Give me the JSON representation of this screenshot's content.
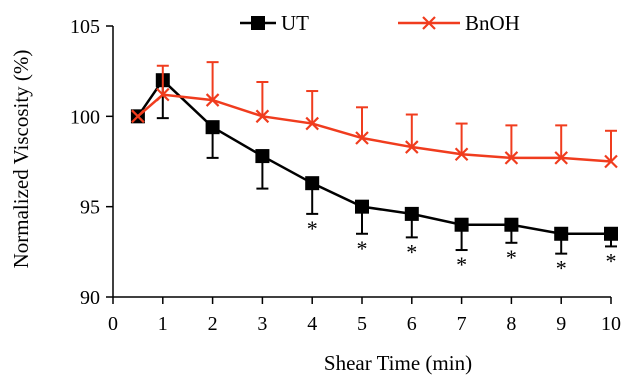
{
  "chart_data": {
    "type": "line",
    "xlabel": "Shear Time (min)",
    "ylabel": "Normalized Viscosity (%)",
    "xlim": [
      0,
      10
    ],
    "ylim": [
      90,
      105
    ],
    "xticks": [
      0,
      1,
      2,
      3,
      4,
      5,
      6,
      7,
      8,
      9,
      10
    ],
    "yticks": [
      90,
      95,
      100,
      105
    ],
    "grid": false,
    "legend_position": "top",
    "series": [
      {
        "name": "UT",
        "color": "#000000",
        "marker": "square",
        "x": [
          0.5,
          1,
          2,
          3,
          4,
          5,
          6,
          7,
          8,
          9,
          10
        ],
        "y": [
          100,
          102.0,
          99.4,
          97.8,
          96.3,
          95.0,
          94.6,
          94.0,
          94.0,
          93.5,
          93.5
        ],
        "error_minus": [
          0,
          2.1,
          1.7,
          1.8,
          1.7,
          1.5,
          1.3,
          1.4,
          1.0,
          1.1,
          0.7
        ],
        "error_plus": [
          0,
          0,
          0,
          0,
          0,
          0,
          0,
          0,
          0,
          0,
          0
        ],
        "significance": [
          "",
          "",
          "",
          "",
          "*",
          "*",
          "*",
          "*",
          "*",
          "*",
          "*"
        ]
      },
      {
        "name": "BnOH",
        "color": "#f03c1e",
        "marker": "x",
        "x": [
          0.5,
          1,
          2,
          3,
          4,
          5,
          6,
          7,
          8,
          9,
          10
        ],
        "y": [
          100,
          101.2,
          100.9,
          100.0,
          99.6,
          98.8,
          98.3,
          97.9,
          97.7,
          97.7,
          97.5
        ],
        "error_minus": [
          0,
          0,
          0,
          0,
          0,
          0,
          0,
          0,
          0,
          0,
          0
        ],
        "error_plus": [
          0,
          1.6,
          2.1,
          1.9,
          1.8,
          1.7,
          1.8,
          1.7,
          1.8,
          1.8,
          1.7
        ]
      }
    ]
  }
}
